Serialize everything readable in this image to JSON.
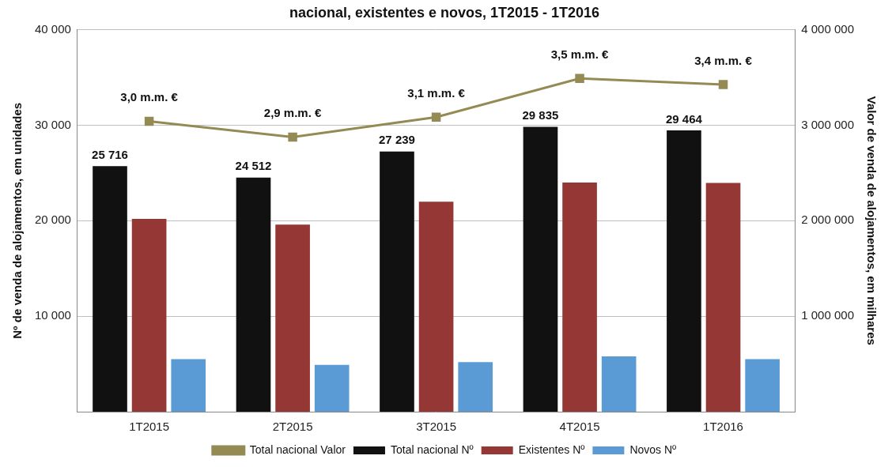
{
  "chart_data": {
    "type": "bar",
    "title": "nacional, existentes e novos, 1T2015 - 1T2016",
    "categories": [
      "1T2015",
      "2T2015",
      "3T2015",
      "4T2015",
      "1T2016"
    ],
    "y_label": "Nº de venda de alojamentos, em unidades",
    "y2_label": "Valor de venda de alojamentos, em milhares",
    "ylim": [
      0,
      40000
    ],
    "yticks": [
      {
        "value": 10000,
        "label": "10 000"
      },
      {
        "value": 20000,
        "label": "20 000"
      },
      {
        "value": 30000,
        "label": "30 000"
      },
      {
        "value": 40000,
        "label": "40 000"
      }
    ],
    "y2lim": [
      0,
      4000000
    ],
    "y2ticks": [
      {
        "value": 1000000,
        "label": "1 000 000"
      },
      {
        "value": 2000000,
        "label": "2 000 000"
      },
      {
        "value": 3000000,
        "label": "3 000 000"
      },
      {
        "value": 4000000,
        "label": "4 000 000"
      }
    ],
    "grid": true,
    "legend": "bottom",
    "series": [
      {
        "name": "Total nacional Nº",
        "color": "#111111",
        "values": [
          25716,
          24512,
          27239,
          29835,
          29464
        ],
        "data_labels": true,
        "value_labels": [
          "25 716",
          "24 512",
          "27 239",
          "29 835",
          "29 464"
        ]
      },
      {
        "name": "Existentes Nº",
        "color": "#953735",
        "values": [
          20200,
          19600,
          22000,
          24000,
          23950
        ]
      },
      {
        "name": "Novos Nº",
        "color": "#5b9bd5",
        "values": [
          5500,
          4900,
          5200,
          5800,
          5500
        ]
      },
      {
        "name": "Total nacional Valor",
        "type": "line",
        "axis": "y2",
        "color": "#948a54",
        "marker": "square",
        "values": [
          3040000,
          2875000,
          3085000,
          3490000,
          3425000
        ],
        "data_labels": true,
        "value_labels": [
          "3,0 m.m. €",
          "2,9 m.m. €",
          "3,1 m.m. €",
          "3,5 m.m. €",
          "3,4 m.m. €"
        ]
      }
    ]
  }
}
